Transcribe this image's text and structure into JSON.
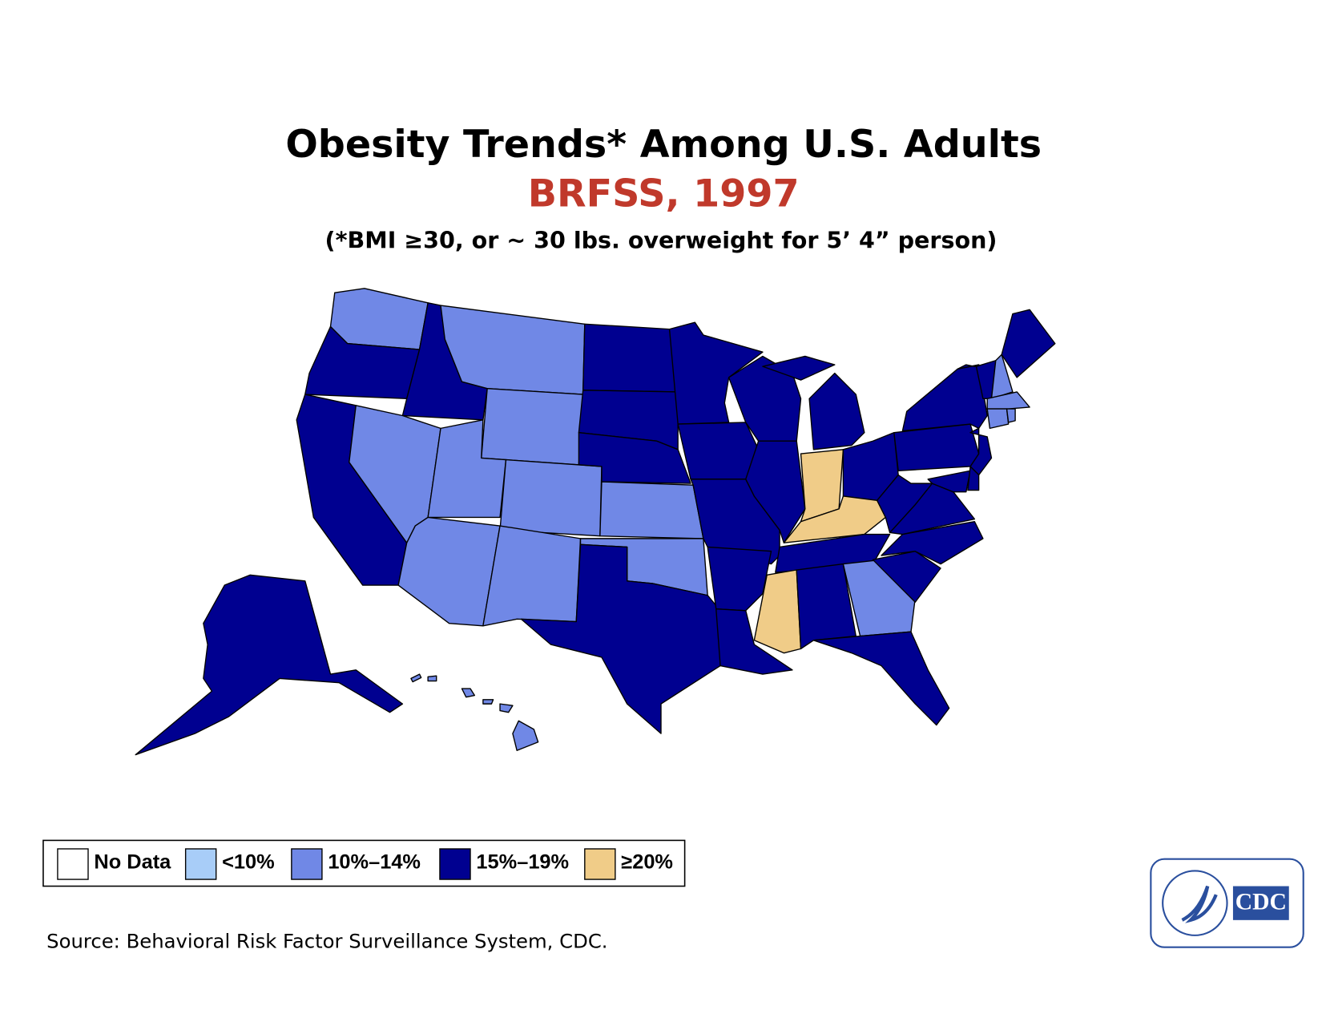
{
  "title": "Obesity Trends* Among U.S. Adults",
  "subtitle": "BRFSS, 1997",
  "note": "(*BMI ≥30, or ~ 30 lbs. overweight for 5’ 4” person)",
  "legend": [
    {
      "label": "No Data",
      "color": "#ffffff"
    },
    {
      "label": "<10%",
      "color": "#a8cdf8"
    },
    {
      "label": "10%–14%",
      "color": "#7088e6"
    },
    {
      "label": "15%–19%",
      "color": "#000090"
    },
    {
      "label": "≥20%",
      "color": "#f0cc88"
    }
  ],
  "regions": [
    2,
    3,
    3,
    3,
    2,
    2,
    2,
    2,
    2,
    2,
    2,
    3,
    3,
    3,
    2,
    2,
    3,
    3,
    3,
    3,
    3,
    3,
    3,
    3,
    4,
    3,
    3,
    4,
    3,
    4,
    3,
    2,
    3,
    3,
    3,
    3,
    3,
    3,
    3,
    3,
    3,
    2,
    3,
    2,
    2,
    2,
    3,
    3,
    3,
    3,
    2
  ],
  "source": "Source: Behavioral Risk Factor Surveillance System, CDC.",
  "logo": "CDC"
}
